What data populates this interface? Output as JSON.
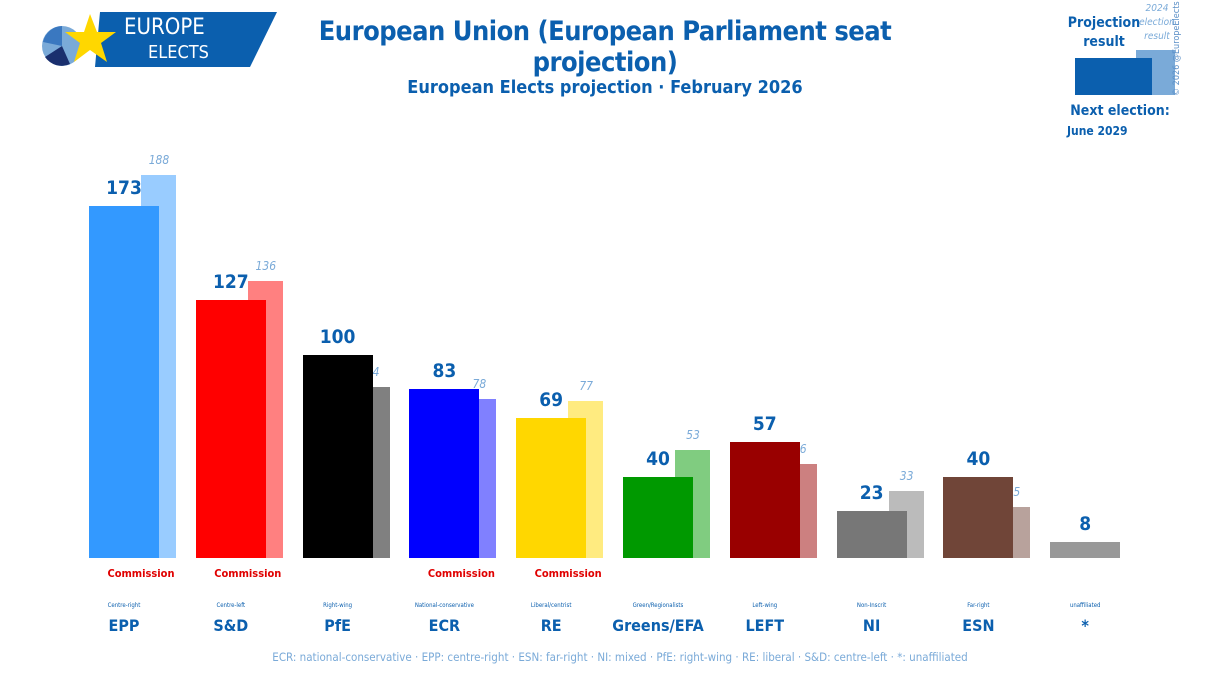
{
  "header": {
    "logo_text_1": "EUROPE",
    "logo_text_2": "ELECTS",
    "title": "European Union (European Parliament seat projection)",
    "subtitle": "European Elects projection · February 2026"
  },
  "legend": {
    "projection_label": "Projection result",
    "previous_label": "2024 election result",
    "copyright": "© 2026 @EuropeElects",
    "next_election_label": "Next election:",
    "next_election_date": "June 2029",
    "projection_color": "#0b5fae",
    "previous_color": "#7aaad8"
  },
  "chart_data": {
    "type": "bar",
    "categories": [
      "EPP",
      "S&D",
      "PfE",
      "ECR",
      "RE",
      "Greens/EFA",
      "LEFT",
      "NI",
      "ESN",
      "*"
    ],
    "ideologies": [
      "Centre-right",
      "Centre-left",
      "Right-wing",
      "National-conservative",
      "Liberal/centrist",
      "Green/Regionalists",
      "Left-wing",
      "Non-Inscrit",
      "Far-right",
      "unaffiliated"
    ],
    "commission": [
      "Commission",
      "Commission",
      "",
      "Commission",
      "Commission",
      "",
      "",
      "",
      "",
      ""
    ],
    "series": [
      {
        "name": "Projection result",
        "values": [
          173,
          127,
          100,
          83,
          69,
          40,
          57,
          23,
          40,
          8
        ]
      },
      {
        "name": "2024 election result",
        "values": [
          188,
          136,
          84,
          78,
          77,
          53,
          46,
          33,
          25,
          null
        ]
      }
    ],
    "colors": [
      "#3399ff",
      "#ff0000",
      "#000000",
      "#0000ff",
      "#ffd700",
      "#009900",
      "#990000",
      "#777777",
      "#704538",
      "#999999"
    ],
    "previous_colors": [
      "#99ccff",
      "#ff8080",
      "#808080",
      "#8080ff",
      "#ffeb80",
      "#80cc80",
      "#cc8080",
      "#bbbbbb",
      "#b8a29c",
      ""
    ],
    "ylim": [
      0,
      200
    ]
  },
  "footer": "ECR: national-conservative · EPP: centre-right · ESN: far-right · NI: mixed · PfE: right-wing · RE: liberal · S&D: centre-left · *: unaffiliated"
}
